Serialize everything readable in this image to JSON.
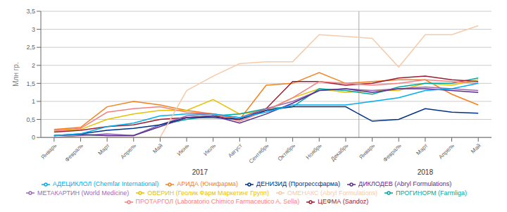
{
  "chart_data": {
    "type": "line",
    "ylabel": "Млн гр.",
    "categories": [
      "Январь",
      "Февраль",
      "Март",
      "Апрель",
      "Май",
      "Июнь",
      "Июль",
      "Август",
      "Сентябрь",
      "Октябрь",
      "Ноябрь",
      "Декабрь",
      "Январь",
      "Февраль",
      "Март",
      "Апрель",
      "Май"
    ],
    "series": [
      {
        "name": "АРИДА (Юнифарма)",
        "color": "#F4821E",
        "values": [
          0.22,
          0.28,
          0.85,
          1.0,
          0.9,
          0.75,
          0.65,
          0.5,
          1.45,
          1.5,
          1.8,
          1.5,
          1.55,
          1.6,
          1.6,
          1.2,
          0.9
        ]
      },
      {
        "name": "ОВЕРИН (Геолик Фарм Маркетинг Групп)",
        "color": "#E8C200",
        "values": [
          0.18,
          0.22,
          0.5,
          0.65,
          0.75,
          0.75,
          1.05,
          0.65,
          0.75,
          1.1,
          1.35,
          1.25,
          1.3,
          1.3,
          1.5,
          1.45,
          1.6
        ]
      },
      {
        "name": "ПРОГИНОРМ (Farmliga)",
        "color": "#00A89C",
        "values": [
          0.05,
          0.08,
          0.05,
          0.05,
          0.35,
          0.5,
          0.6,
          0.65,
          0.8,
          0.85,
          1.35,
          1.3,
          1.2,
          1.4,
          1.5,
          1.5,
          1.65
        ]
      },
      {
        "name": "ЦЕФМА (Sandoz)",
        "color": "#9B1B30",
        "values": [
          0.15,
          0.2,
          0.3,
          0.35,
          0.5,
          0.55,
          0.6,
          0.5,
          0.8,
          1.55,
          1.55,
          1.45,
          1.5,
          1.65,
          1.7,
          1.6,
          1.55
        ]
      },
      {
        "name": "МЕТАКАРТИН (World Medicine)",
        "color": "#9B6BB5",
        "values": [
          0.0,
          0.05,
          0.1,
          0.05,
          0.35,
          0.6,
          0.65,
          0.55,
          0.8,
          1.0,
          1.3,
          1.35,
          1.3,
          1.35,
          1.4,
          1.35,
          1.3
        ]
      },
      {
        "name": "ПРОТАРГОЛ (Laboratorio Chimico Farmaceutico A. Sella)",
        "color": "#F48080",
        "values": [
          0.2,
          0.25,
          0.7,
          0.8,
          0.85,
          0.7,
          0.65,
          0.45,
          0.75,
          1.1,
          1.55,
          1.5,
          1.45,
          1.5,
          1.6,
          1.55,
          1.5
        ]
      },
      {
        "name": "ДЕНИЗИД (Прогрессфарма)",
        "color": "#003087",
        "values": [
          0.05,
          0.1,
          0.2,
          0.25,
          0.35,
          0.55,
          0.55,
          0.5,
          0.75,
          0.85,
          0.85,
          0.85,
          0.45,
          0.5,
          0.8,
          0.7,
          0.67
        ]
      },
      {
        "name": "ДИКЛОДЕВ (Abryl Formulations)",
        "color": "#5B2D8E",
        "values": [
          0.05,
          0.08,
          0.05,
          0.05,
          0.3,
          0.55,
          0.6,
          0.4,
          0.65,
          0.95,
          1.3,
          1.35,
          1.25,
          1.35,
          1.35,
          1.3,
          1.25
        ]
      },
      {
        "name": "АДЕЦИКЛОЛ (Chemfar International)",
        "color": "#00AEEF",
        "values": [
          0.05,
          0.1,
          0.3,
          0.4,
          0.6,
          0.65,
          0.65,
          0.55,
          0.7,
          0.9,
          0.9,
          0.9,
          1.0,
          1.1,
          1.3,
          1.35,
          1.5
        ]
      },
      {
        "name": "ОМЕНАКС (Abryl Formulations)",
        "color": "#F5CBAA",
        "values": [
          0.0,
          0.0,
          0.0,
          0.0,
          0.0,
          1.3,
          1.7,
          2.05,
          2.1,
          2.1,
          2.85,
          2.8,
          2.75,
          1.95,
          2.85,
          2.85,
          3.1
        ]
      }
    ],
    "ylim": [
      0,
      3.5
    ],
    "yticks": [
      0,
      {
        "value": 0.5,
        "label": "0,5"
      },
      1,
      {
        "value": 1.5,
        "label": "1,5"
      },
      2,
      {
        "value": 2.5,
        "label": "2,5"
      },
      3,
      {
        "value": 3.5,
        "label": "3,5"
      }
    ],
    "annotations": [
      "2017",
      "2018"
    ],
    "grid": true
  }
}
